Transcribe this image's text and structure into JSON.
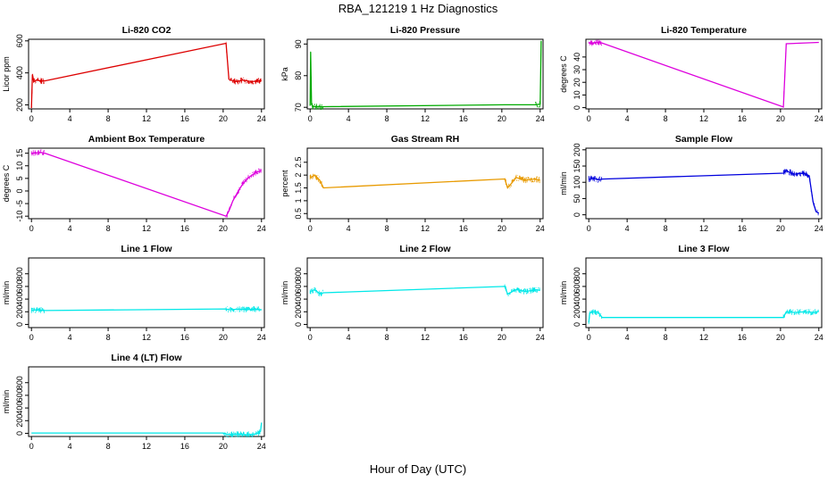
{
  "figure_title": "RBA_121219  1 Hz Diagnostics",
  "common_xlabel": "Hour of Day (UTC)",
  "chart_data": [
    {
      "type": "line",
      "title": "Li-820 CO2",
      "ylabel": "Licor ppm",
      "color": "#dd0000",
      "xlim": [
        -0.3,
        24.3
      ],
      "ylim": [
        175,
        610
      ],
      "yticks": [
        200,
        400,
        600
      ],
      "xticks": [
        0,
        4,
        8,
        12,
        16,
        20,
        24
      ],
      "series": [
        {
          "name": "CO2",
          "x": [
            0,
            0.1,
            0.25,
            0.5,
            1.0,
            1.4,
            20.3,
            20.6,
            21.0,
            21.5,
            22.0,
            22.5,
            23.0,
            23.5,
            24.0
          ],
          "y": [
            180,
            390,
            345,
            355,
            350,
            350,
            585,
            360,
            350,
            345,
            355,
            350,
            345,
            350,
            350
          ]
        }
      ]
    },
    {
      "type": "line",
      "title": "Li-820 Pressure",
      "ylabel": "kPa",
      "color": "#00aa00",
      "xlim": [
        -0.3,
        24.3
      ],
      "ylim": [
        69.5,
        91.5
      ],
      "yticks": [
        70,
        80,
        90
      ],
      "xticks": [
        0,
        4,
        8,
        12,
        16,
        20,
        24
      ],
      "series": [
        {
          "name": "Pressure",
          "x": [
            0,
            0.05,
            0.15,
            0.3,
            1.4,
            20.3,
            23.5,
            24.0,
            24.1
          ],
          "y": [
            70.5,
            87.5,
            71.0,
            70.2,
            70.2,
            70.8,
            70.8,
            71.0,
            91.0
          ]
        }
      ]
    },
    {
      "type": "line",
      "title": "Li-820 Temperature",
      "ylabel": "degrees C",
      "color": "#dd00dd",
      "xlim": [
        -0.3,
        24.3
      ],
      "ylim": [
        -1,
        54
      ],
      "yticks": [
        0,
        10,
        20,
        30,
        40
      ],
      "xticks": [
        0,
        4,
        8,
        12,
        16,
        20,
        24
      ],
      "series": [
        {
          "name": "Temperature",
          "x": [
            0,
            1.0,
            1.4,
            20.3,
            20.6,
            24.0
          ],
          "y": [
            51,
            51.5,
            51,
            0.5,
            50.5,
            51.5
          ]
        }
      ]
    },
    {
      "type": "line",
      "title": "Ambient Box Temperature",
      "ylabel": "degrees C",
      "color": "#dd00dd",
      "xlim": [
        -0.3,
        24.3
      ],
      "ylim": [
        -11,
        17
      ],
      "yticks": [
        -10,
        -5,
        0,
        5,
        10,
        15
      ],
      "xticks": [
        0,
        4,
        8,
        12,
        16,
        20,
        24
      ],
      "series": [
        {
          "name": "Box Temp",
          "x": [
            0,
            0.5,
            1.0,
            1.4,
            20.3,
            20.6,
            21.0,
            21.5,
            22.0,
            22.5,
            23.0,
            23.5,
            24.0
          ],
          "y": [
            15,
            15.2,
            15.3,
            15,
            -10,
            -8,
            -4,
            -0.5,
            2.5,
            4.8,
            6.3,
            7.5,
            8.2
          ]
        }
      ]
    },
    {
      "type": "line",
      "title": "Gas Stream RH",
      "ylabel": "percent",
      "color": "#e89a00",
      "xlim": [
        -0.3,
        24.3
      ],
      "ylim": [
        0.3,
        3.05
      ],
      "yticks": [
        0.5,
        1.0,
        1.5,
        2.0,
        2.5
      ],
      "xticks": [
        0,
        4,
        8,
        12,
        16,
        20,
        24
      ],
      "series": [
        {
          "name": "RH",
          "x": [
            0,
            0.5,
            1.0,
            1.4,
            20.3,
            20.6,
            21.5,
            22.5,
            23.5,
            24.0
          ],
          "y": [
            1.9,
            2.0,
            1.8,
            1.5,
            1.85,
            1.5,
            1.9,
            1.8,
            1.85,
            1.8
          ]
        }
      ]
    },
    {
      "type": "line",
      "title": "Sample Flow",
      "ylabel": "ml/min",
      "color": "#0000dd",
      "xlim": [
        -0.3,
        24.3
      ],
      "ylim": [
        -12,
        205
      ],
      "yticks": [
        0,
        50,
        100,
        150,
        200
      ],
      "xticks": [
        0,
        4,
        8,
        12,
        16,
        20,
        24
      ],
      "series": [
        {
          "name": "Sample Flow",
          "x": [
            0,
            0.5,
            1.0,
            1.4,
            20.3,
            20.6,
            21.5,
            22.5,
            23.0,
            23.4,
            23.7,
            24.0
          ],
          "y": [
            110,
            112,
            108,
            110,
            128,
            135,
            125,
            128,
            120,
            40,
            10,
            5
          ]
        }
      ]
    },
    {
      "type": "line",
      "title": "Line 1 Flow",
      "ylabel": "ml/min",
      "color": "#00e8e8",
      "xlim": [
        -0.3,
        24.3
      ],
      "ylim": [
        -50,
        1050
      ],
      "yticks": [
        0,
        200,
        400,
        600,
        800
      ],
      "xticks": [
        0,
        4,
        8,
        12,
        16,
        20,
        24
      ],
      "series": [
        {
          "name": "Line 1",
          "x": [
            0,
            0.5,
            1.0,
            1.4,
            20.3,
            20.6,
            21.5,
            22.5,
            23.5,
            24.0
          ],
          "y": [
            220,
            230,
            225,
            220,
            245,
            230,
            240,
            235,
            240,
            230
          ]
        }
      ]
    },
    {
      "type": "line",
      "title": "Line 2 Flow",
      "ylabel": "ml/min",
      "color": "#00e8e8",
      "xlim": [
        -0.3,
        24.3
      ],
      "ylim": [
        -50,
        1050
      ],
      "yticks": [
        0,
        200,
        400,
        600,
        800
      ],
      "xticks": [
        0,
        4,
        8,
        12,
        16,
        20,
        24
      ],
      "series": [
        {
          "name": "Line 2",
          "x": [
            0,
            0.5,
            1.0,
            1.4,
            20.3,
            20.6,
            21.5,
            22.5,
            23.5,
            24.0
          ],
          "y": [
            520,
            550,
            480,
            500,
            600,
            480,
            550,
            520,
            550,
            540
          ]
        }
      ]
    },
    {
      "type": "line",
      "title": "Line 3 Flow",
      "ylabel": "ml/min",
      "color": "#00e8e8",
      "xlim": [
        -0.3,
        24.3
      ],
      "ylim": [
        -50,
        1050
      ],
      "yticks": [
        0,
        200,
        400,
        600,
        800
      ],
      "xticks": [
        0,
        4,
        8,
        12,
        16,
        20,
        24
      ],
      "series": [
        {
          "name": "Line 3",
          "x": [
            0,
            0.1,
            0.5,
            1.0,
            1.4,
            20.3,
            20.6,
            21.5,
            22.5,
            23.5,
            24.0
          ],
          "y": [
            30,
            180,
            200,
            190,
            110,
            110,
            200,
            190,
            200,
            190,
            210
          ]
        }
      ]
    },
    {
      "type": "line",
      "title": "Line 4 (LT) Flow",
      "ylabel": "ml/min",
      "color": "#00e8e8",
      "xlim": [
        -0.3,
        24.3
      ],
      "ylim": [
        -50,
        1050
      ],
      "yticks": [
        0,
        200,
        400,
        600,
        800
      ],
      "xticks": [
        0,
        4,
        8,
        12,
        16,
        20,
        24
      ],
      "series": [
        {
          "name": "Line 4",
          "x": [
            0,
            4,
            8,
            12,
            16,
            20,
            20.5,
            21.5,
            22.5,
            23.5,
            23.9,
            24.0
          ],
          "y": [
            5,
            5,
            5,
            5,
            5,
            5,
            -20,
            -15,
            -20,
            -10,
            30,
            170
          ]
        }
      ]
    }
  ]
}
